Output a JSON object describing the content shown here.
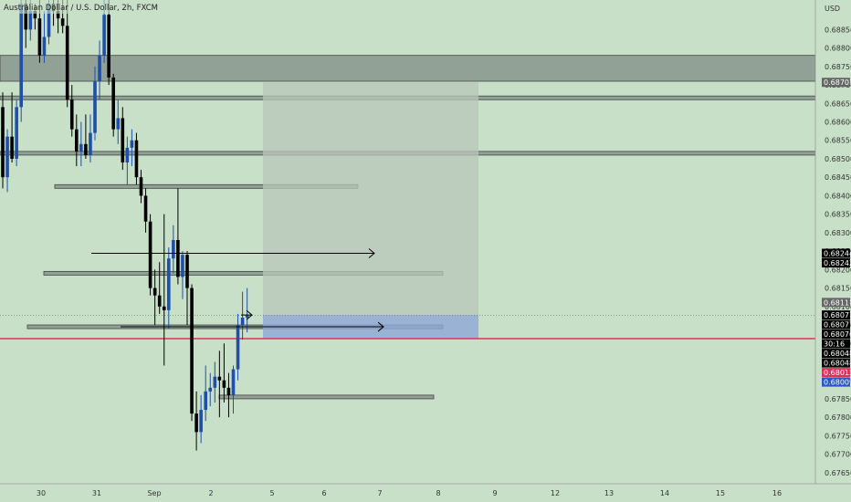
{
  "header": {
    "symbol_title": "Australian Dollar / U.S. Dollar, 2h, FXCM",
    "currency": "USD"
  },
  "colors": {
    "background": "#c8e0c8",
    "bull": "#1f4fa8",
    "bear": "#000000",
    "zone_fill": "#7f8c86",
    "zone_border": "#444444",
    "target_box": "#b9c7b9",
    "stop_box": "#8fa8d8",
    "entry_line": "#e0315a",
    "badge_black": "#000000",
    "badge_grey": "#666666",
    "badge_red": "#e0315a",
    "badge_blue": "#2a57c9"
  },
  "price_axis": {
    "ticks": [
      "0.68850",
      "0.68800",
      "0.68750",
      "0.68700",
      "0.68650",
      "0.68600",
      "0.68550",
      "0.68500",
      "0.68450",
      "0.68400",
      "0.68350",
      "0.68300",
      "0.68250",
      "0.68200",
      "0.68150",
      "0.68100",
      "0.68050",
      "0.68000",
      "0.67950",
      "0.67900",
      "0.67850",
      "0.67800",
      "0.67750",
      "0.67700",
      "0.67650"
    ],
    "badges": [
      {
        "text": "0.68707",
        "price": 0.68707,
        "style": "grey"
      },
      {
        "text": "0.68244",
        "price": 0.68244,
        "style": "black"
      },
      {
        "text": "0.68242",
        "price": 0.68242,
        "style": "black"
      },
      {
        "text": "0.68111",
        "price": 0.68111,
        "style": "grey"
      },
      {
        "text": "0.68077",
        "price": 0.68077,
        "style": "black"
      },
      {
        "text": "0.68077",
        "price": 0.68077,
        "style": "black"
      },
      {
        "text": "0.68076",
        "price": 0.68076,
        "style": "black"
      },
      {
        "text": "30:16",
        "price": 0.68076,
        "style": "black"
      },
      {
        "text": "0.68048",
        "price": 0.68048,
        "style": "black"
      },
      {
        "text": "0.68048",
        "price": 0.68048,
        "style": "black"
      },
      {
        "text": "0.68013",
        "price": 0.68013,
        "style": "red"
      },
      {
        "text": "0.68009",
        "price": 0.68009,
        "style": "blue"
      }
    ]
  },
  "time_axis": {
    "labels": [
      {
        "text": "30",
        "slot": 1
      },
      {
        "text": "31",
        "slot": 2
      },
      {
        "text": "Sep",
        "slot": 3
      },
      {
        "text": "2",
        "slot": 4
      },
      {
        "text": "5",
        "slot": 5
      },
      {
        "text": "6",
        "slot": 6
      },
      {
        "text": "7",
        "slot": 7
      },
      {
        "text": "8",
        "slot": 8
      },
      {
        "text": "9",
        "slot": 9
      },
      {
        "text": "12",
        "slot": 10
      },
      {
        "text": "13",
        "slot": 11
      },
      {
        "text": "14",
        "slot": 12
      },
      {
        "text": "15",
        "slot": 13
      },
      {
        "text": "16",
        "slot": 14
      }
    ]
  },
  "chart_data": {
    "type": "candlestick",
    "title": "Australian Dollar / U.S. Dollar, 2h, FXCM",
    "ylabel": "USD",
    "ylim": [
      0.6762,
      0.6893
    ],
    "grid": false,
    "candles": [
      {
        "o": 0.6864,
        "h": 0.6868,
        "l": 0.6842,
        "c": 0.6845
      },
      {
        "o": 0.6845,
        "h": 0.6858,
        "l": 0.6841,
        "c": 0.6856
      },
      {
        "o": 0.6856,
        "h": 0.6868,
        "l": 0.6849,
        "c": 0.685
      },
      {
        "o": 0.685,
        "h": 0.6866,
        "l": 0.6848,
        "c": 0.6864
      },
      {
        "o": 0.6864,
        "h": 0.6896,
        "l": 0.686,
        "c": 0.6892
      },
      {
        "o": 0.6892,
        "h": 0.6894,
        "l": 0.688,
        "c": 0.6885
      },
      {
        "o": 0.6885,
        "h": 0.6893,
        "l": 0.6882,
        "c": 0.689
      },
      {
        "o": 0.689,
        "h": 0.6892,
        "l": 0.6885,
        "c": 0.6888
      },
      {
        "o": 0.6888,
        "h": 0.6896,
        "l": 0.6876,
        "c": 0.6878
      },
      {
        "o": 0.6878,
        "h": 0.689,
        "l": 0.6876,
        "c": 0.6883
      },
      {
        "o": 0.6883,
        "h": 0.6895,
        "l": 0.6881,
        "c": 0.6892
      },
      {
        "o": 0.6892,
        "h": 0.6896,
        "l": 0.6886,
        "c": 0.689
      },
      {
        "o": 0.689,
        "h": 0.6896,
        "l": 0.6884,
        "c": 0.6888
      },
      {
        "o": 0.6888,
        "h": 0.6895,
        "l": 0.6884,
        "c": 0.6886
      },
      {
        "o": 0.6886,
        "h": 0.6894,
        "l": 0.6864,
        "c": 0.6866
      },
      {
        "o": 0.6866,
        "h": 0.687,
        "l": 0.6856,
        "c": 0.6858
      },
      {
        "o": 0.6858,
        "h": 0.6862,
        "l": 0.6848,
        "c": 0.6852
      },
      {
        "o": 0.6852,
        "h": 0.686,
        "l": 0.6848,
        "c": 0.6854
      },
      {
        "o": 0.6854,
        "h": 0.6862,
        "l": 0.685,
        "c": 0.6851
      },
      {
        "o": 0.6851,
        "h": 0.6862,
        "l": 0.6849,
        "c": 0.6857
      },
      {
        "o": 0.6857,
        "h": 0.6875,
        "l": 0.6855,
        "c": 0.6871
      },
      {
        "o": 0.6871,
        "h": 0.6882,
        "l": 0.6866,
        "c": 0.6878
      },
      {
        "o": 0.6878,
        "h": 0.6894,
        "l": 0.6876,
        "c": 0.6889
      },
      {
        "o": 0.6889,
        "h": 0.6896,
        "l": 0.687,
        "c": 0.6872
      },
      {
        "o": 0.6872,
        "h": 0.6873,
        "l": 0.6856,
        "c": 0.6858
      },
      {
        "o": 0.6858,
        "h": 0.6866,
        "l": 0.6854,
        "c": 0.6861
      },
      {
        "o": 0.6861,
        "h": 0.6864,
        "l": 0.6847,
        "c": 0.6849
      },
      {
        "o": 0.6849,
        "h": 0.6856,
        "l": 0.6843,
        "c": 0.6853
      },
      {
        "o": 0.6853,
        "h": 0.6858,
        "l": 0.6848,
        "c": 0.6855
      },
      {
        "o": 0.6855,
        "h": 0.6857,
        "l": 0.6843,
        "c": 0.6845
      },
      {
        "o": 0.6845,
        "h": 0.6847,
        "l": 0.6838,
        "c": 0.684
      },
      {
        "o": 0.684,
        "h": 0.6842,
        "l": 0.683,
        "c": 0.6833
      },
      {
        "o": 0.6833,
        "h": 0.6835,
        "l": 0.6813,
        "c": 0.6815
      },
      {
        "o": 0.6815,
        "h": 0.682,
        "l": 0.6805,
        "c": 0.6813
      },
      {
        "o": 0.6813,
        "h": 0.6822,
        "l": 0.6808,
        "c": 0.681
      },
      {
        "o": 0.681,
        "h": 0.6835,
        "l": 0.6794,
        "c": 0.6809
      },
      {
        "o": 0.6809,
        "h": 0.6826,
        "l": 0.6804,
        "c": 0.6823
      },
      {
        "o": 0.6823,
        "h": 0.6832,
        "l": 0.6819,
        "c": 0.6828
      },
      {
        "o": 0.6828,
        "h": 0.6842,
        "l": 0.6816,
        "c": 0.6818
      },
      {
        "o": 0.6818,
        "h": 0.6825,
        "l": 0.6812,
        "c": 0.6824
      },
      {
        "o": 0.6824,
        "h": 0.6825,
        "l": 0.6805,
        "c": 0.6815
      },
      {
        "o": 0.6815,
        "h": 0.6816,
        "l": 0.6779,
        "c": 0.6781
      },
      {
        "o": 0.6781,
        "h": 0.6787,
        "l": 0.6771,
        "c": 0.6776
      },
      {
        "o": 0.6776,
        "h": 0.6786,
        "l": 0.6773,
        "c": 0.6782
      },
      {
        "o": 0.6782,
        "h": 0.6794,
        "l": 0.6779,
        "c": 0.6787
      },
      {
        "o": 0.6787,
        "h": 0.6792,
        "l": 0.6783,
        "c": 0.6788
      },
      {
        "o": 0.6788,
        "h": 0.6795,
        "l": 0.6784,
        "c": 0.6791
      },
      {
        "o": 0.6791,
        "h": 0.6798,
        "l": 0.678,
        "c": 0.679
      },
      {
        "o": 0.679,
        "h": 0.68,
        "l": 0.6784,
        "c": 0.6788
      },
      {
        "o": 0.6788,
        "h": 0.6792,
        "l": 0.678,
        "c": 0.6786
      },
      {
        "o": 0.6786,
        "h": 0.6794,
        "l": 0.6781,
        "c": 0.6793
      },
      {
        "o": 0.6793,
        "h": 0.6808,
        "l": 0.679,
        "c": 0.6805
      },
      {
        "o": 0.6805,
        "h": 0.6814,
        "l": 0.6801,
        "c": 0.6807
      },
      {
        "o": 0.6807,
        "h": 0.6815,
        "l": 0.6803,
        "c": 0.68076
      }
    ],
    "zones": [
      {
        "top": 0.6878,
        "bottom": 0.6871
      },
      {
        "top": 0.6867,
        "bottom": 0.6866
      },
      {
        "top": 0.6852,
        "bottom": 0.6851
      },
      {
        "top": 0.6843,
        "bottom": 0.6842
      },
      {
        "top": 0.68195,
        "bottom": 0.68185
      },
      {
        "top": 0.6805,
        "bottom": 0.6804
      },
      {
        "top": 0.6786,
        "bottom": 0.6785
      }
    ],
    "position": {
      "target_top": 0.68707,
      "entry": 0.68077,
      "stop": 0.68013
    },
    "arrows": [
      {
        "price": 0.68244
      },
      {
        "price": 0.68045
      },
      {
        "price": 0.68077
      }
    ]
  }
}
